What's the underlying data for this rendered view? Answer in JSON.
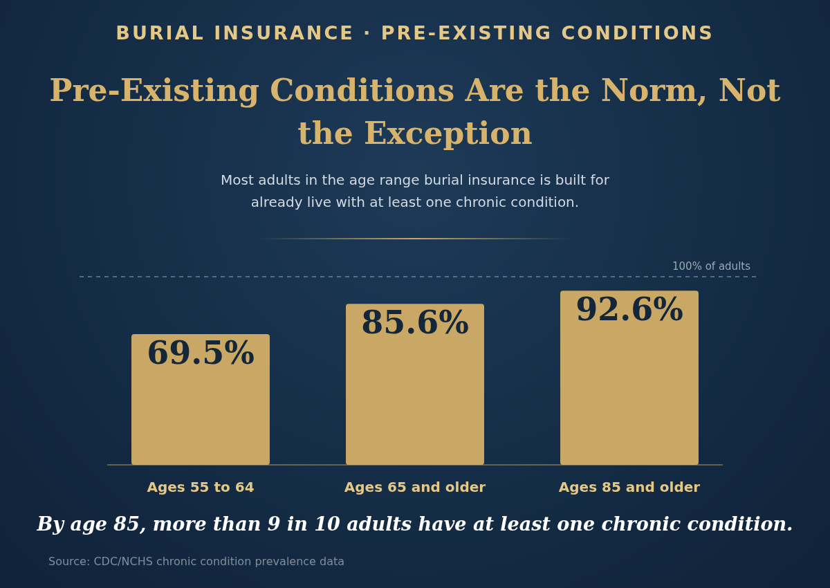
{
  "chart_data": {
    "type": "bar",
    "title": "Pre-Existing Conditions Are the Norm, Not the Exception",
    "subtitle": "Most adults in the age range burial insurance is built for already live with at least one chronic condition.",
    "categories": [
      "Ages 55 to 64",
      "Ages 65 and older",
      "Ages 85 and older"
    ],
    "values": [
      69.5,
      85.6,
      92.6
    ],
    "value_labels": [
      "69.5%",
      "85.6%",
      "92.6%"
    ],
    "color": "#c9a865",
    "tick_labels": "x",
    "grid": false,
    "legend": false,
    "ref_lines": [
      {
        "axis": "y",
        "value": 100,
        "label": "100% of adults",
        "line_style": "dashed",
        "color": "#6f8296"
      }
    ],
    "annotations": [
      "BURIAL INSURANCE · PRE-EXISTING CONDITIONS",
      "By age 85, more than 9 in 10 adults have at least one chronic condition.",
      "Source: CDC/NCHS chronic condition prevalence data"
    ]
  }
}
